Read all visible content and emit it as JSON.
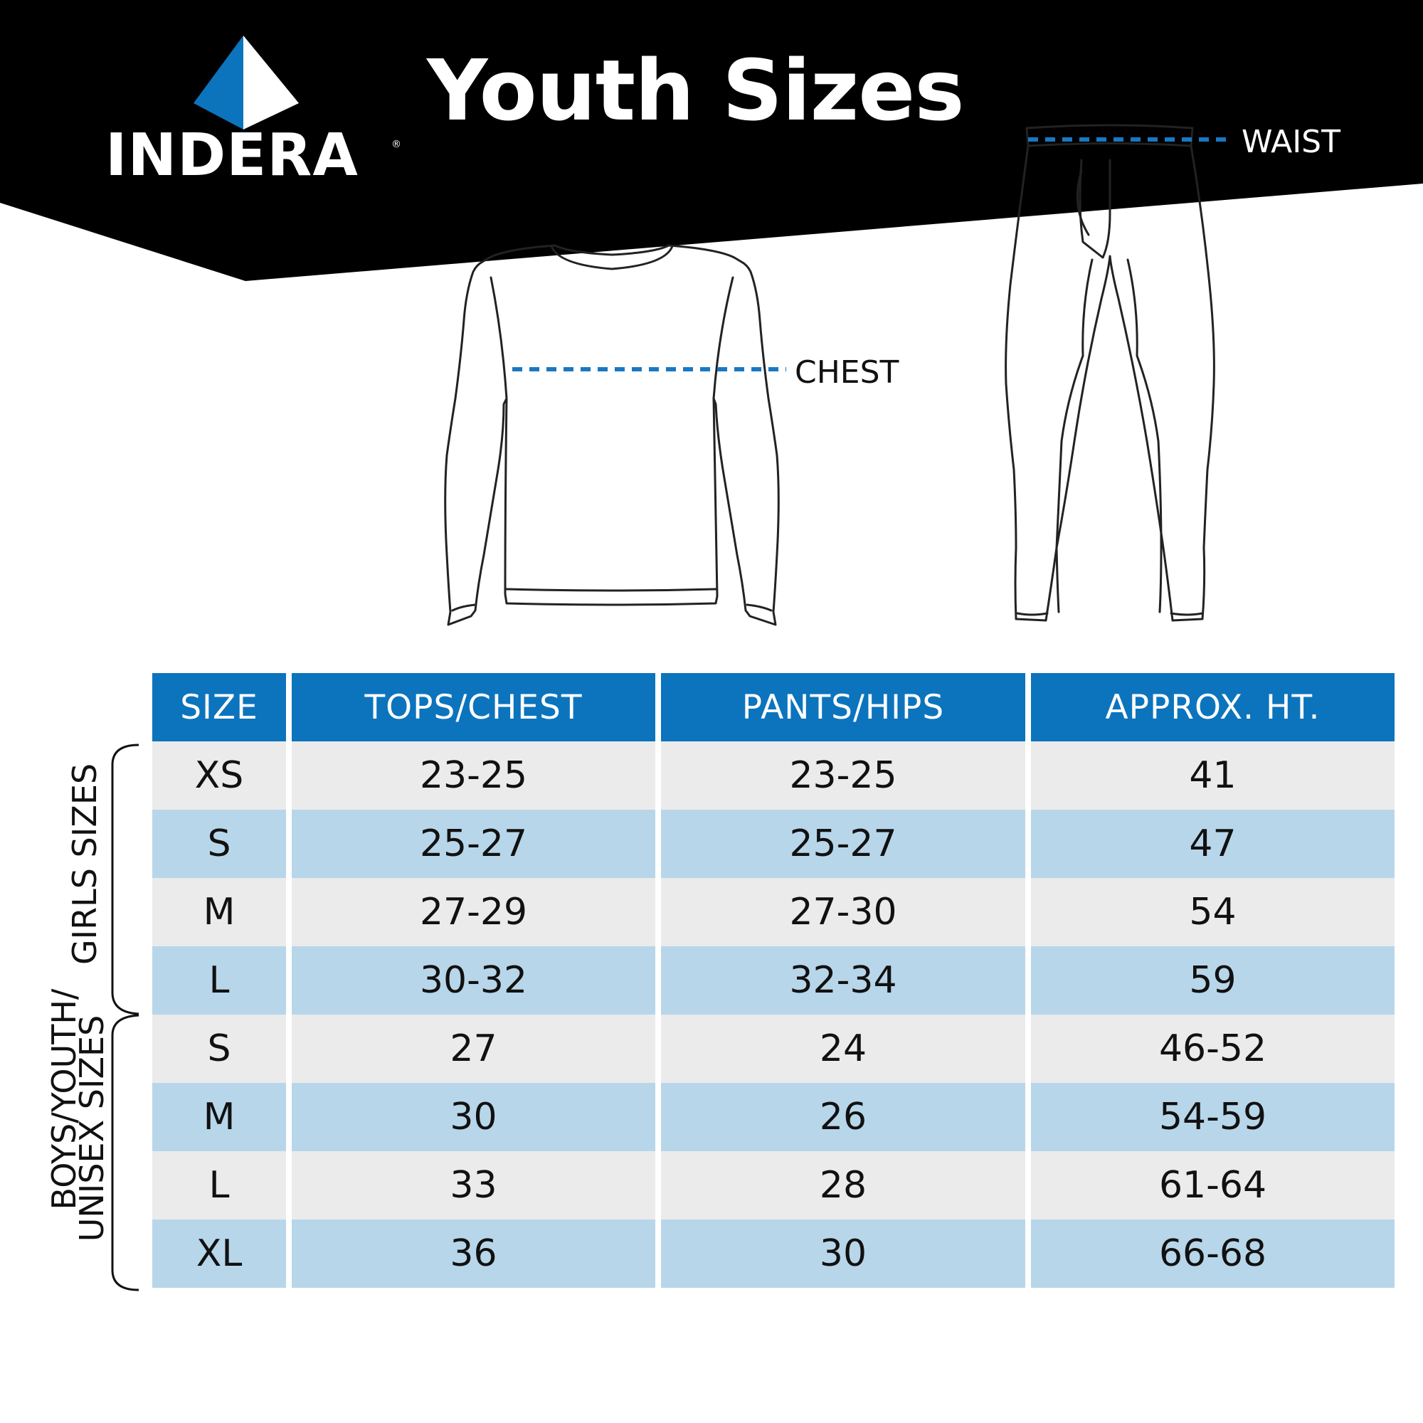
{
  "brand": {
    "name": "INDERA",
    "registered_mark": "®",
    "colors": {
      "blue": "#0c74bd",
      "dark_blue": "#0a4f8c",
      "black": "#000000",
      "white": "#ffffff"
    }
  },
  "title": "Youth Sizes",
  "measurements": {
    "waist_label": "WAIST",
    "chest_label": "CHEST",
    "guide_color": "#1a78c2"
  },
  "groups": {
    "girls": "GIRLS SIZES",
    "boys_line1": "BOYS/YOUTH/",
    "boys_line2": "UNISEX SIZES"
  },
  "table": {
    "header_color": "#0c74bd",
    "row_colors": [
      "#ebebeb",
      "#b8d6ea"
    ],
    "headers": [
      "SIZE",
      "TOPS/CHEST",
      "PANTS/HIPS",
      "APPROX. HT."
    ],
    "rows": [
      {
        "group": "girls",
        "size": "XS",
        "tops": "23-25",
        "pants": "23-25",
        "ht": "41"
      },
      {
        "group": "girls",
        "size": "S",
        "tops": "25-27",
        "pants": "25-27",
        "ht": "47"
      },
      {
        "group": "girls",
        "size": "M",
        "tops": "27-29",
        "pants": "27-30",
        "ht": "54"
      },
      {
        "group": "girls",
        "size": "L",
        "tops": "30-32",
        "pants": "32-34",
        "ht": "59"
      },
      {
        "group": "boys",
        "size": "S",
        "tops": "27",
        "pants": "24",
        "ht": "46-52"
      },
      {
        "group": "boys",
        "size": "M",
        "tops": "30",
        "pants": "26",
        "ht": "54-59"
      },
      {
        "group": "boys",
        "size": "L",
        "tops": "33",
        "pants": "28",
        "ht": "61-64"
      },
      {
        "group": "boys",
        "size": "XL",
        "tops": "36",
        "pants": "30",
        "ht": "66-68"
      }
    ]
  }
}
